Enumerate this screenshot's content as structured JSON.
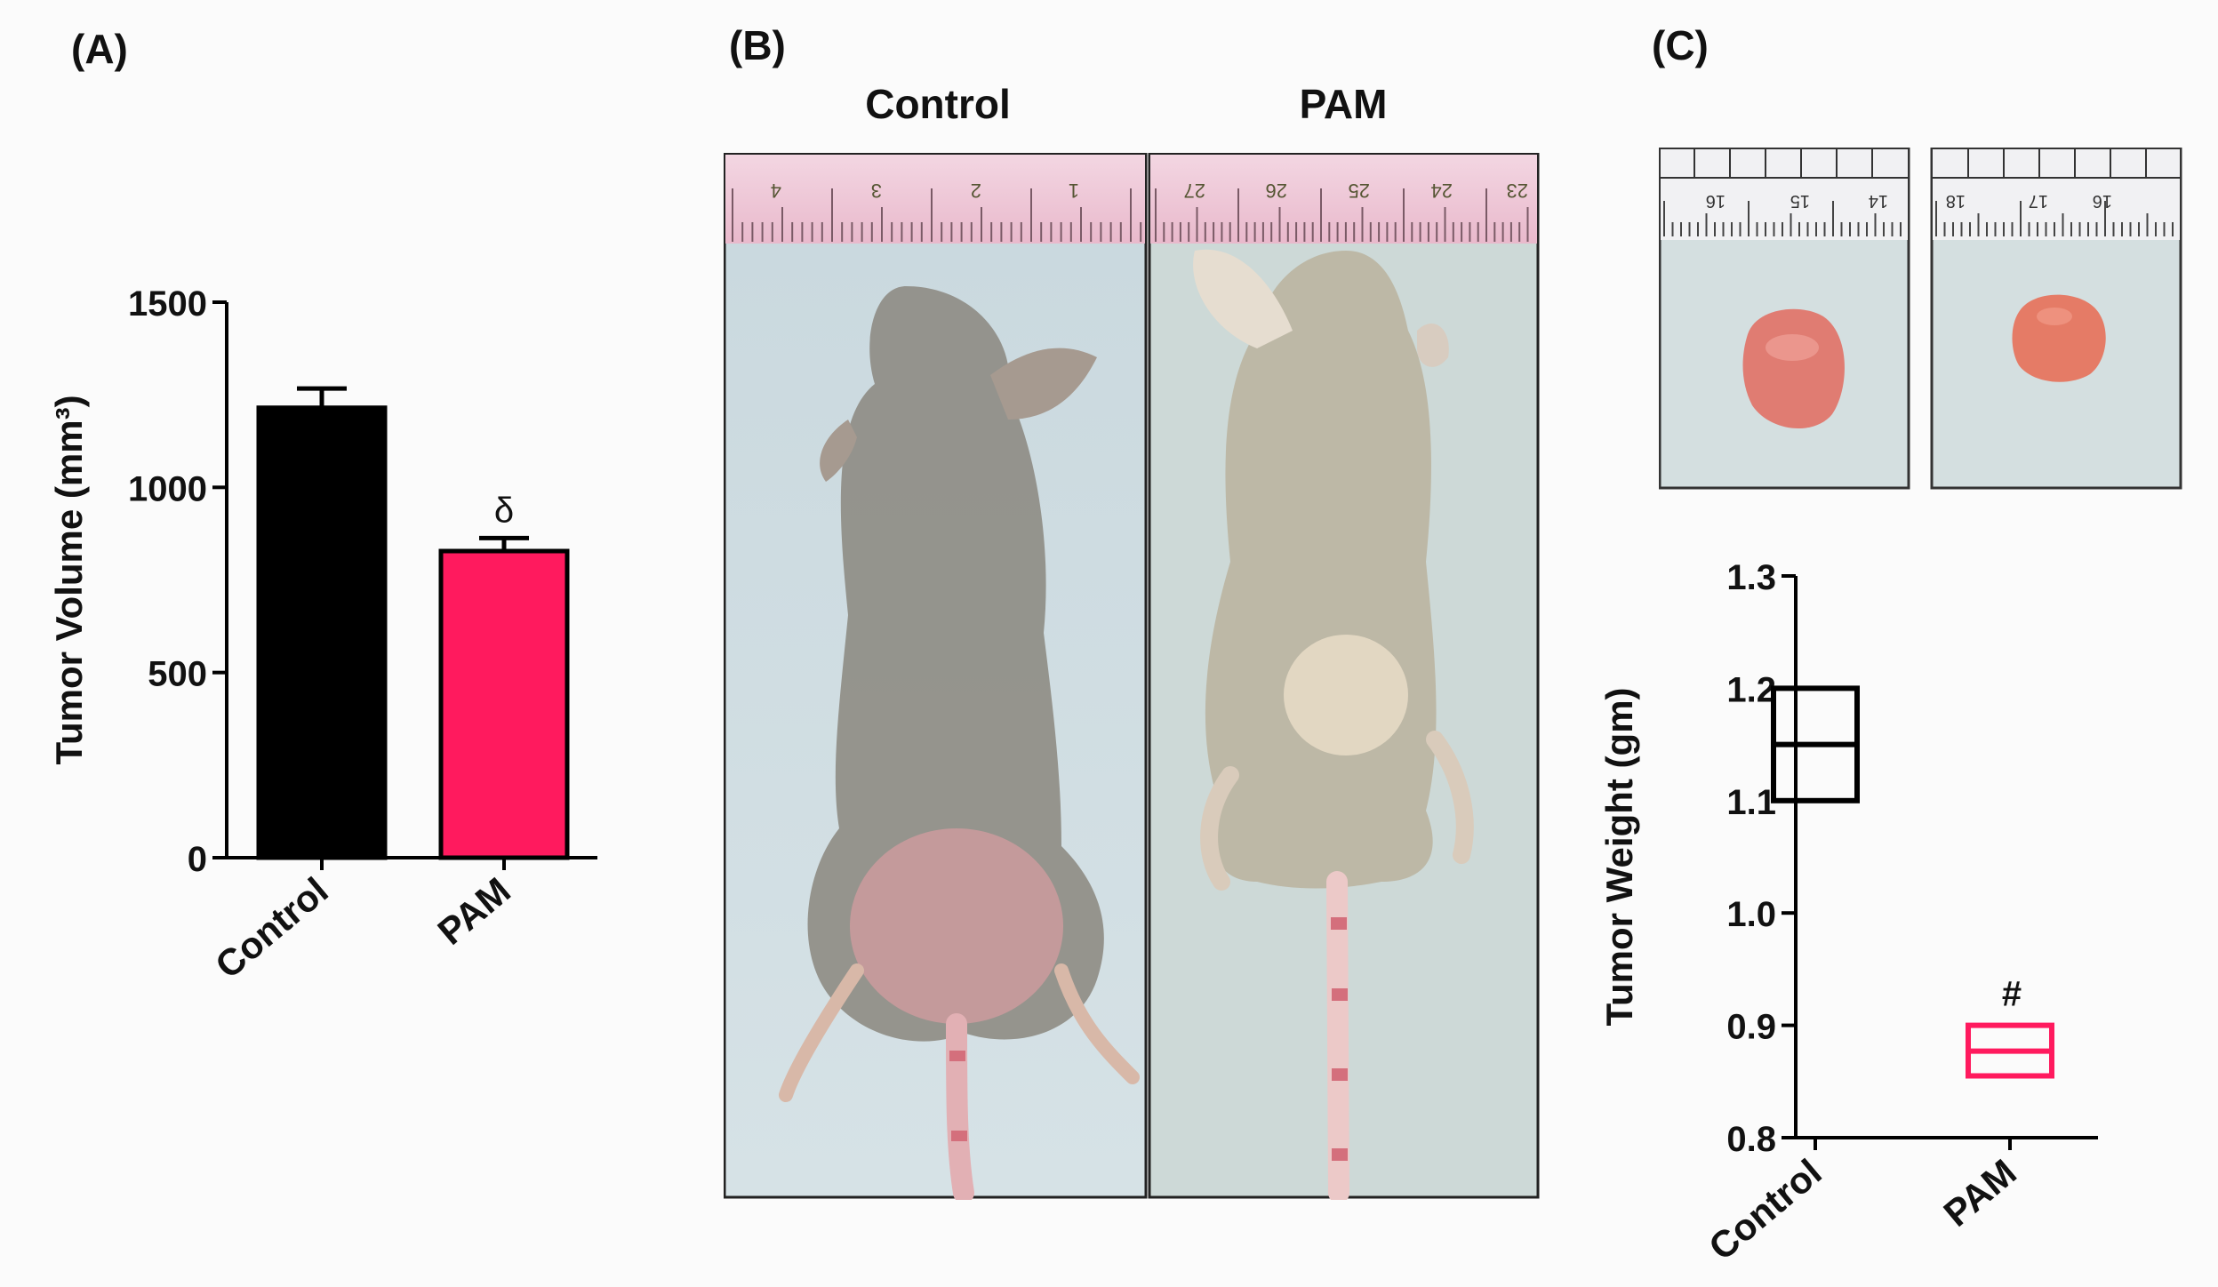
{
  "panels": {
    "a_label": "(A)",
    "b_label": "(B)",
    "c_label": "(C)"
  },
  "photos": {
    "mouse_control_title": "Control",
    "mouse_pam_title": "PAM",
    "ruler_left_numbers": [
      "4",
      "3",
      "2",
      "1"
    ],
    "ruler_right_numbers": [
      "27",
      "26",
      "25",
      "24",
      "23"
    ],
    "ruler_tumor_left_numbers": [
      "16",
      "15",
      "14"
    ],
    "ruler_tumor_right_numbers": [
      "18",
      "17",
      "16"
    ]
  },
  "chart_data": [
    {
      "type": "bar",
      "panel": "A",
      "categories": [
        "Control",
        "PAM"
      ],
      "values": [
        1215,
        828
      ],
      "error_bars": [
        52,
        35
      ],
      "colors": [
        "#000000",
        "#ff1a5e"
      ],
      "annotations": [
        "",
        "δ"
      ],
      "ylabel": "Tumor Volume (mm³)",
      "ylim": [
        0,
        1500
      ],
      "yticks": [
        0,
        500,
        1000,
        1500
      ]
    },
    {
      "type": "box",
      "panel": "C",
      "categories": [
        "Control",
        "PAM"
      ],
      "boxes": [
        {
          "low": 1.1,
          "median": 1.15,
          "high": 1.2
        },
        {
          "low": 0.855,
          "median": 0.877,
          "high": 0.9
        }
      ],
      "colors": [
        "#000000",
        "#ff1a5e"
      ],
      "annotations": [
        "",
        "#"
      ],
      "ylabel": "Tumor Weight (gm)",
      "ylim": [
        0.8,
        1.3
      ],
      "yticks": [
        0.8,
        0.9,
        1.0,
        1.1,
        1.2,
        1.3
      ]
    }
  ]
}
